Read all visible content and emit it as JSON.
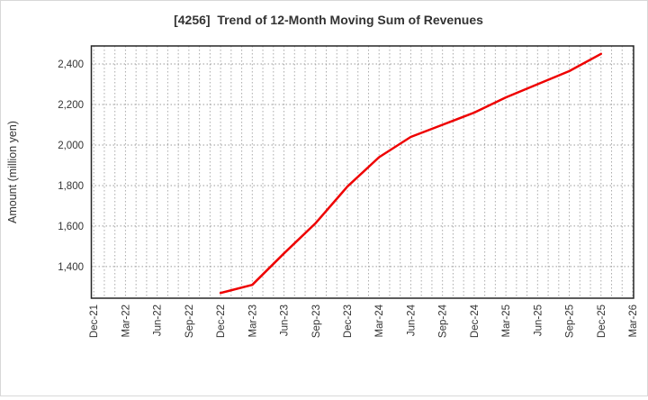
{
  "chart_data": {
    "type": "line",
    "title": "[4256]  Trend of 12-Month Moving Sum of Revenues",
    "ylabel": "Amount (million yen)",
    "xlabel": "",
    "categories": [
      "Dec-21",
      "Mar-22",
      "Jun-22",
      "Sep-22",
      "Dec-22",
      "Mar-23",
      "Jun-23",
      "Sep-23",
      "Dec-23",
      "Mar-24",
      "Jun-24",
      "Sep-24",
      "Dec-24",
      "Mar-25",
      "Jun-25",
      "Sep-25",
      "Dec-25",
      "Mar-26"
    ],
    "series": [
      {
        "name": "12-Month Moving Sum of Revenues",
        "color": "#ee0000",
        "values": [
          null,
          null,
          null,
          null,
          1270,
          1310,
          1465,
          1615,
          1795,
          1940,
          2040,
          2100,
          2160,
          2235,
          2300,
          2365,
          2450,
          null
        ]
      }
    ],
    "ylim": [
      1244,
      2489
    ],
    "yticks": [
      1400,
      1600,
      1800,
      2000,
      2200,
      2400
    ],
    "ytick_labels": [
      "1,400",
      "1,600",
      "1,800",
      "2,000",
      "2,200",
      "2,400"
    ],
    "x_minor_months_per_interval": 3,
    "grid": {
      "style": "dotted",
      "color": "#aaaaaa"
    },
    "legend_position": "none",
    "frame_color": "#262626",
    "title_color": "#333333",
    "tick_color": "#333333"
  }
}
